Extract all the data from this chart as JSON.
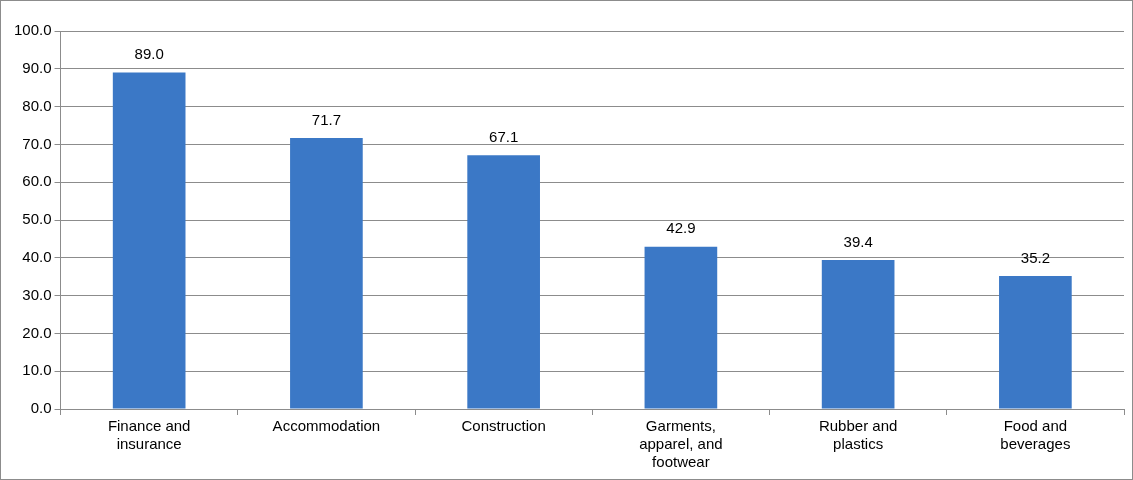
{
  "chart_data": {
    "type": "bar",
    "categories": [
      "Finance and insurance",
      "Accommodation",
      "Construction",
      "Garments, apparel, and footwear",
      "Rubber and plastics",
      "Food and beverages"
    ],
    "values": [
      89.0,
      71.7,
      67.1,
      42.9,
      39.4,
      35.2
    ],
    "color": "#3b78c6",
    "ylim": [
      0,
      100
    ],
    "yticks": [
      {
        "value": 0,
        "label": "0.0"
      },
      {
        "value": 10,
        "label": "10.0"
      },
      {
        "value": 20,
        "label": "20.0"
      },
      {
        "value": 30,
        "label": "30.0"
      },
      {
        "value": 40,
        "label": "40.0"
      },
      {
        "value": 50,
        "label": "50.0"
      },
      {
        "value": 60,
        "label": "60.0"
      },
      {
        "value": 70,
        "label": "70.0"
      },
      {
        "value": 80,
        "label": "80.0"
      },
      {
        "value": 90,
        "label": "90.0"
      },
      {
        "value": 100,
        "label": "100.0"
      }
    ],
    "value_labels": [
      "89.0",
      "71.7",
      "67.1",
      "42.9",
      "39.4",
      "35.2"
    ],
    "grid": "y",
    "legend": false
  }
}
